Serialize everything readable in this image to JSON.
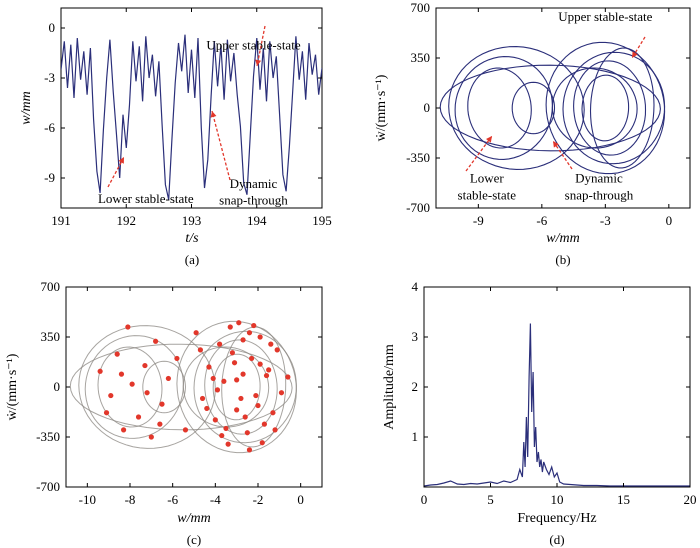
{
  "chart_data": [
    {
      "type": "line",
      "caption": "(a)",
      "xlabel": "t/s",
      "ylabel": "w/mm",
      "xlim": [
        191,
        195
      ],
      "ylim": [
        -10.8,
        1.2
      ],
      "xticks": [
        "191",
        "192",
        "193",
        "194",
        "195"
      ],
      "yticks": [
        "0",
        "-3",
        "-6",
        "-9"
      ],
      "line_color": "#2b2f7a",
      "series": [
        {
          "x": [
            191.0,
            191.05,
            191.1,
            191.15,
            191.2,
            191.25,
            191.3,
            191.35,
            191.4,
            191.45,
            191.5,
            191.55,
            191.6,
            191.65,
            191.7,
            191.75,
            191.8,
            191.85,
            191.9,
            191.95,
            192.0,
            192.05,
            192.1,
            192.15,
            192.2,
            192.25,
            192.3,
            192.35,
            192.4,
            192.45,
            192.5,
            192.55,
            192.6,
            192.65,
            192.7,
            192.75,
            192.8,
            192.85,
            192.9,
            192.95,
            193.0,
            193.05,
            193.1,
            193.15,
            193.2,
            193.25,
            193.3,
            193.35,
            193.4,
            193.45,
            193.5,
            193.55,
            193.6,
            193.65,
            193.7,
            193.75,
            193.8,
            193.85,
            193.9,
            193.95,
            194.0,
            194.05,
            194.1,
            194.15,
            194.2,
            194.25,
            194.3,
            194.35,
            194.4,
            194.45,
            194.5,
            194.55,
            194.6,
            194.65,
            194.7,
            194.75,
            194.8,
            194.85,
            194.9,
            194.95,
            195.0
          ],
          "values": [
            -2.5,
            -0.8,
            -3.6,
            -1.0,
            -4.2,
            -0.6,
            -3.1,
            -1.4,
            -4.0,
            -1.2,
            -5.5,
            -8.6,
            -9.9,
            -6.1,
            -3.0,
            -0.7,
            -3.8,
            -6.4,
            -9.0,
            -5.2,
            -7.2,
            -4.6,
            -0.8,
            -3.2,
            -1.1,
            -4.4,
            -0.5,
            -3.0,
            -1.6,
            -4.1,
            -2.0,
            -5.8,
            -9.4,
            -10.3,
            -6.7,
            -3.3,
            -0.9,
            -2.6,
            -0.4,
            -3.9,
            -1.3,
            -4.2,
            -0.6,
            -6.0,
            -9.6,
            -7.9,
            -4.1,
            -0.8,
            -3.5,
            -1.0,
            -4.3,
            -0.7,
            -3.2,
            -1.5,
            -4.0,
            -5.9,
            -9.3,
            -10.0,
            -6.5,
            -2.9,
            -0.6,
            -3.7,
            -1.2,
            -4.4,
            -0.8,
            -3.0,
            -1.7,
            -5.2,
            -8.8,
            -9.8,
            -7.1,
            -3.9,
            -0.5,
            -3.1,
            -1.4,
            -4.3,
            -0.9,
            -2.8,
            -1.6,
            -4.0,
            -2.4
          ]
        }
      ],
      "annotations": [
        {
          "text": "Upper stable-state",
          "x": 193.95,
          "y": -1.3
        },
        {
          "text": "Lower stable-state",
          "x": 192.3,
          "y": -10.5
        },
        {
          "text": "Dynamic",
          "x": 193.95,
          "y": -9.6
        },
        {
          "text": "snap-through",
          "x": 193.95,
          "y": -10.6
        }
      ]
    },
    {
      "type": "line",
      "caption": "(b)",
      "xlabel": "w/mm",
      "ylabel": "ẇ/(mm·s⁻¹)",
      "xlim": [
        -11,
        1
      ],
      "ylim": [
        -700,
        700
      ],
      "xticks": [
        "-9",
        "-6",
        "-3",
        "0"
      ],
      "yticks": [
        "700",
        "350",
        "0",
        "-350",
        "-700"
      ],
      "line_color": "#2b2f7a",
      "loops": [
        {
          "cx": -8.0,
          "rx": 1.5,
          "ry": 280,
          "tilt": 0.05
        },
        {
          "cx": -7.8,
          "rx": 2.3,
          "ry": 360,
          "tilt": -0.04
        },
        {
          "cx": -7.2,
          "rx": 3.2,
          "ry": 430,
          "tilt": 0.03
        },
        {
          "cx": -6.4,
          "rx": 1.0,
          "ry": 180,
          "tilt": 0.0
        },
        {
          "cx": -5.6,
          "rx": 5.2,
          "ry": 300,
          "tilt": 0.02
        },
        {
          "cx": -3.0,
          "rx": 1.1,
          "ry": 230,
          "tilt": -0.03
        },
        {
          "cx": -2.8,
          "rx": 1.7,
          "ry": 330,
          "tilt": 0.04
        },
        {
          "cx": -2.6,
          "rx": 2.4,
          "ry": 390,
          "tilt": -0.02
        },
        {
          "cx": -3.0,
          "rx": 2.8,
          "ry": 460,
          "tilt": 0.05
        },
        {
          "cx": -2.2,
          "rx": 1.5,
          "ry": 420,
          "tilt": -0.05
        },
        {
          "cx": -3.5,
          "rx": 2.0,
          "ry": 280,
          "tilt": 0.02
        }
      ],
      "annotations": [
        {
          "text": "Upper stable-state",
          "x": -3.0,
          "y": 610
        },
        {
          "text": "Lower",
          "x": -8.6,
          "y": -520
        },
        {
          "text": "stable-state",
          "x": -8.6,
          "y": -640
        },
        {
          "text": "Dynamic",
          "x": -3.3,
          "y": -520
        },
        {
          "text": "snap-through",
          "x": -3.3,
          "y": -640
        }
      ]
    },
    {
      "type": "scatter",
      "caption": "(c)",
      "xlabel": "w/mm",
      "ylabel": "ẇ/(mm·s⁻¹)",
      "xlim": [
        -11,
        1
      ],
      "ylim": [
        -700,
        700
      ],
      "xticks": [
        "-10",
        "-8",
        "-6",
        "-4",
        "-2",
        "0"
      ],
      "yticks": [
        "700",
        "350",
        "0",
        "-350",
        "-700"
      ],
      "line_color": "#8a8580",
      "point_color": "#e2372b",
      "loops": [
        {
          "cx": -8.0,
          "rx": 1.5,
          "ry": 280,
          "tilt": 0.05
        },
        {
          "cx": -7.8,
          "rx": 2.3,
          "ry": 360,
          "tilt": -0.04
        },
        {
          "cx": -7.2,
          "rx": 3.2,
          "ry": 430,
          "tilt": 0.03
        },
        {
          "cx": -6.4,
          "rx": 1.0,
          "ry": 180,
          "tilt": 0.0
        },
        {
          "cx": -5.6,
          "rx": 5.2,
          "ry": 300,
          "tilt": 0.02
        },
        {
          "cx": -3.0,
          "rx": 1.1,
          "ry": 230,
          "tilt": -0.03
        },
        {
          "cx": -2.8,
          "rx": 1.7,
          "ry": 330,
          "tilt": 0.04
        },
        {
          "cx": -2.6,
          "rx": 2.4,
          "ry": 390,
          "tilt": -0.02
        },
        {
          "cx": -3.0,
          "rx": 2.8,
          "ry": 460,
          "tilt": 0.05
        },
        {
          "cx": -2.2,
          "rx": 1.5,
          "ry": 420,
          "tilt": -0.05
        },
        {
          "cx": -3.5,
          "rx": 2.0,
          "ry": 280,
          "tilt": 0.02
        }
      ],
      "points": [
        [
          -9.4,
          110
        ],
        [
          -8.9,
          -60
        ],
        [
          -8.6,
          230
        ],
        [
          -8.3,
          -300
        ],
        [
          -8.1,
          420
        ],
        [
          -7.9,
          20
        ],
        [
          -7.6,
          -210
        ],
        [
          -7.3,
          150
        ],
        [
          -7.0,
          -350
        ],
        [
          -6.8,
          320
        ],
        [
          -6.5,
          -120
        ],
        [
          -6.2,
          60
        ],
        [
          -8.4,
          90
        ],
        [
          -7.2,
          -40
        ],
        [
          -9.1,
          -180
        ],
        [
          -6.6,
          -260
        ],
        [
          -5.8,
          200
        ],
        [
          -5.4,
          -300
        ],
        [
          -4.9,
          380
        ],
        [
          -4.6,
          -80
        ],
        [
          -4.3,
          140
        ],
        [
          -4.0,
          -230
        ],
        [
          -3.8,
          300
        ],
        [
          -3.6,
          40
        ],
        [
          -3.4,
          -400
        ],
        [
          -3.2,
          240
        ],
        [
          -3.0,
          -160
        ],
        [
          -2.9,
          450
        ],
        [
          -2.7,
          90
        ],
        [
          -2.5,
          -320
        ],
        [
          -2.3,
          200
        ],
        [
          -2.1,
          -60
        ],
        [
          -1.9,
          350
        ],
        [
          -1.7,
          -260
        ],
        [
          -1.5,
          120
        ],
        [
          -1.3,
          -180
        ],
        [
          -1.1,
          260
        ],
        [
          -0.9,
          -40
        ],
        [
          -0.6,
          70
        ],
        [
          -2.4,
          380
        ],
        [
          -3.5,
          -290
        ],
        [
          -4.1,
          60
        ],
        [
          -2.8,
          -80
        ],
        [
          -3.1,
          170
        ],
        [
          -1.8,
          -390
        ],
        [
          -2.2,
          430
        ],
        [
          -3.7,
          -340
        ],
        [
          -4.4,
          -150
        ],
        [
          -1.4,
          300
        ],
        [
          -2.6,
          -210
        ],
        [
          -3.3,
          420
        ],
        [
          -1.6,
          80
        ],
        [
          -2.0,
          -130
        ],
        [
          -4.7,
          260
        ],
        [
          -3.9,
          -20
        ],
        [
          -2.7,
          330
        ],
        [
          -1.2,
          -300
        ],
        [
          -3.0,
          50
        ],
        [
          -2.4,
          -440
        ],
        [
          -1.9,
          160
        ]
      ]
    },
    {
      "type": "line",
      "caption": "(d)",
      "xlabel": "Frequency/Hz",
      "ylabel": "Amplitude/mm",
      "xlim": [
        0,
        20
      ],
      "ylim": [
        0,
        4
      ],
      "xticks": [
        "0",
        "5",
        "10",
        "15",
        "20"
      ],
      "yticks": [
        "4",
        "3",
        "2",
        "1"
      ],
      "line_color": "#2b2f7a",
      "series": [
        {
          "x": [
            0.0,
            0.5,
            1.0,
            1.5,
            2.0,
            2.5,
            3.0,
            3.5,
            4.0,
            4.5,
            5.0,
            5.5,
            6.0,
            6.5,
            7.0,
            7.2,
            7.4,
            7.5,
            7.6,
            7.7,
            7.8,
            7.9,
            8.0,
            8.1,
            8.2,
            8.3,
            8.4,
            8.5,
            8.6,
            8.7,
            8.8,
            8.9,
            9.0,
            9.2,
            9.4,
            9.6,
            9.8,
            10.0,
            10.2,
            10.5,
            11.0,
            12.0,
            13.0,
            14.0,
            15.0,
            16.0,
            17.0,
            18.0,
            19.0,
            20.0
          ],
          "values": [
            0.02,
            0.04,
            0.05,
            0.08,
            0.12,
            0.06,
            0.05,
            0.07,
            0.06,
            0.08,
            0.1,
            0.07,
            0.12,
            0.09,
            0.15,
            0.35,
            0.2,
            0.9,
            0.4,
            1.4,
            0.6,
            2.2,
            3.27,
            1.5,
            2.3,
            0.8,
            1.2,
            0.5,
            0.7,
            0.4,
            0.55,
            0.3,
            0.5,
            0.35,
            0.25,
            0.4,
            0.2,
            0.28,
            0.1,
            0.06,
            0.05,
            0.03,
            0.03,
            0.02,
            0.02,
            0.02,
            0.02,
            0.02,
            0.02,
            0.02
          ]
        }
      ]
    }
  ]
}
